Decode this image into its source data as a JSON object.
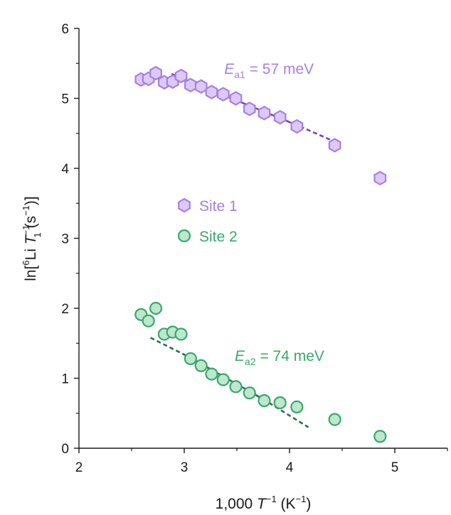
{
  "chart_data": {
    "type": "scatter",
    "xlabel": "1,000 T⁻¹ (K⁻¹)",
    "ylabel": "ln[⁶Li T₁⁻¹ (s⁻¹)]",
    "xlim": [
      2,
      5.5
    ],
    "ylim": [
      0,
      6
    ],
    "xticks": [
      2,
      3,
      4,
      5
    ],
    "yticks": [
      0,
      1,
      2,
      3,
      4,
      5,
      6
    ],
    "xtick_labels": [
      "2",
      "3",
      "4",
      "5"
    ],
    "ytick_labels": [
      "0",
      "1",
      "2",
      "3",
      "4",
      "5",
      "6"
    ],
    "xlabel_parts": {
      "prefix": "1,000 ",
      "var": "T",
      "exp1": "−1",
      "mid": " (K",
      "exp2": "−1",
      "suffix": ")"
    },
    "ylabel_parts": {
      "pre": "ln[",
      "iso": "6",
      "elem": "Li ",
      "var": "T",
      "exp1": "−1",
      "sub1": "1",
      "mid": " (s",
      "exp2": "−1",
      "suffix": ")]"
    },
    "legend": {
      "position": "center-left",
      "entries": [
        "Site 1",
        "Site 2"
      ]
    },
    "series": [
      {
        "name": "Site 1",
        "marker": "hexagon",
        "color": "#a97fe0",
        "fill": "#dccaf6",
        "x": [
          2.59,
          2.66,
          2.73,
          2.81,
          2.89,
          2.97,
          3.06,
          3.16,
          3.26,
          3.37,
          3.49,
          3.62,
          3.76,
          3.91,
          4.07,
          4.43,
          4.86
        ],
        "y": [
          5.27,
          5.28,
          5.36,
          5.23,
          5.24,
          5.32,
          5.19,
          5.17,
          5.09,
          5.06,
          5.0,
          4.85,
          4.79,
          4.73,
          4.6,
          4.33,
          3.86
        ],
        "fit": {
          "color": "#7a3fbf",
          "solid": [
            [
              2.88,
              5.35
            ],
            [
              4.1,
              4.6
            ]
          ],
          "dashed": [
            [
              4.1,
              4.6
            ],
            [
              4.4,
              4.4
            ]
          ]
        },
        "annotation": {
          "var": "E",
          "sub": "a1",
          "text": " = 57 meV",
          "x": 3.38,
          "y": 5.35
        }
      },
      {
        "name": "Site 2",
        "marker": "circle",
        "color": "#3aa86b",
        "fill": "#bde8cd",
        "x": [
          2.59,
          2.66,
          2.73,
          2.81,
          2.89,
          2.97,
          3.06,
          3.16,
          3.26,
          3.37,
          3.49,
          3.62,
          3.76,
          3.91,
          4.07,
          4.43,
          4.86
        ],
        "y": [
          1.91,
          1.82,
          2.0,
          1.63,
          1.66,
          1.63,
          1.28,
          1.18,
          1.06,
          0.98,
          0.88,
          0.79,
          0.68,
          0.65,
          0.59,
          0.41,
          0.17
        ],
        "fit": {
          "color": "#2e6e4b",
          "solid": [
            [
              3.05,
              1.3
            ],
            [
              3.75,
              0.7
            ]
          ],
          "dashed": [
            [
              2.68,
              1.58
            ],
            [
              3.05,
              1.3
            ],
            [
              3.75,
              0.7
            ],
            [
              4.18,
              0.3
            ]
          ]
        },
        "annotation": {
          "var": "E",
          "sub": "a2",
          "text": " = 74 meV",
          "x": 3.48,
          "y": 1.25
        }
      }
    ]
  }
}
